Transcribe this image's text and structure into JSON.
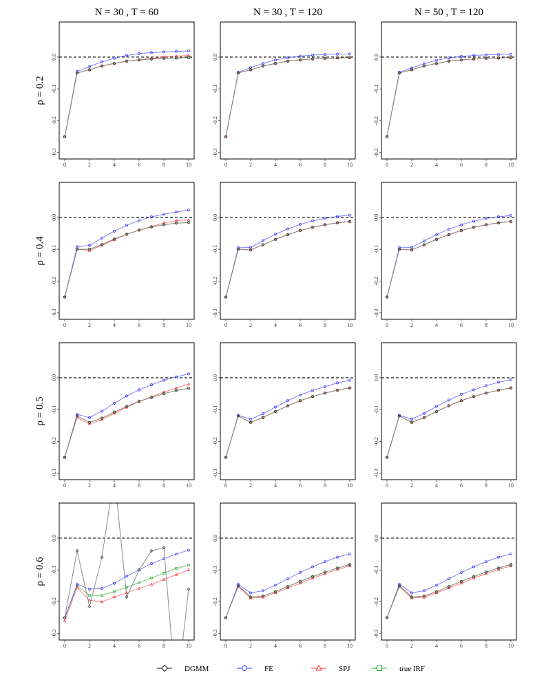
{
  "legend": {
    "items": [
      {
        "label": "DGMM",
        "color": "#222222",
        "marker": "diamond"
      },
      {
        "label": "FE",
        "color": "#3333ff",
        "marker": "circle"
      },
      {
        "label": "SPJ",
        "color": "#ff3333",
        "marker": "triangle"
      },
      {
        "label": "true IRF",
        "color": "#22aa22",
        "marker": "square"
      }
    ]
  },
  "chart_data": {
    "type": "line",
    "col_titles": [
      "N = 30 , T = 60",
      "N = 30 , T = 120",
      "N = 50 , T = 120"
    ],
    "row_titles": [
      "ρ = 0.2",
      "ρ = 0.4",
      "ρ = 0.5",
      "ρ = 0.6"
    ],
    "x": [
      0,
      1,
      2,
      3,
      4,
      5,
      6,
      7,
      8,
      9,
      10
    ],
    "x_ticks": [
      0,
      2,
      4,
      6,
      8,
      10
    ],
    "x_tick_labels": [
      "0",
      "2",
      "4",
      "6",
      "8",
      "10"
    ],
    "ylim": [
      -0.32,
      0.11
    ],
    "y_ticks": [
      0.0,
      -0.1,
      -0.2,
      -0.3
    ],
    "y_tick_labels": [
      "0.0",
      "-0.1",
      "-0.2",
      "-0.3"
    ],
    "reference_line": 0,
    "series_colors": {
      "DGMM": "#222222",
      "FE": "#3333ff",
      "SPJ": "#ff3333",
      "true IRF": "#22aa22"
    },
    "panels": [
      {
        "row": 0,
        "col": 0,
        "series": {
          "true IRF": [
            -0.25,
            -0.05,
            -0.04,
            -0.028,
            -0.02,
            -0.013,
            -0.009,
            -0.006,
            -0.004,
            -0.003,
            -0.002
          ],
          "DGMM": [
            -0.25,
            -0.05,
            -0.04,
            -0.028,
            -0.02,
            -0.013,
            -0.009,
            -0.006,
            -0.004,
            -0.003,
            -0.002
          ],
          "FE": [
            -0.25,
            -0.045,
            -0.03,
            -0.015,
            -0.004,
            0.005,
            0.011,
            0.014,
            0.016,
            0.018,
            0.019
          ],
          "SPJ": [
            -0.25,
            -0.05,
            -0.04,
            -0.027,
            -0.02,
            -0.013,
            -0.008,
            -0.004,
            0.0,
            0.003,
            0.005
          ]
        }
      },
      {
        "row": 0,
        "col": 1,
        "series": {
          "true IRF": [
            -0.25,
            -0.05,
            -0.04,
            -0.028,
            -0.02,
            -0.013,
            -0.009,
            -0.006,
            -0.004,
            -0.003,
            -0.002
          ],
          "DGMM": [
            -0.25,
            -0.05,
            -0.04,
            -0.028,
            -0.02,
            -0.013,
            -0.009,
            -0.006,
            -0.004,
            -0.003,
            -0.002
          ],
          "FE": [
            -0.25,
            -0.048,
            -0.033,
            -0.02,
            -0.009,
            -0.002,
            0.003,
            0.006,
            0.008,
            0.009,
            0.01
          ],
          "SPJ": [
            -0.25,
            -0.05,
            -0.04,
            -0.028,
            -0.02,
            -0.013,
            -0.009,
            -0.006,
            -0.004,
            -0.003,
            -0.002
          ]
        }
      },
      {
        "row": 0,
        "col": 2,
        "series": {
          "true IRF": [
            -0.25,
            -0.05,
            -0.04,
            -0.028,
            -0.02,
            -0.013,
            -0.009,
            -0.006,
            -0.004,
            -0.003,
            -0.002
          ],
          "DGMM": [
            -0.25,
            -0.05,
            -0.04,
            -0.028,
            -0.02,
            -0.013,
            -0.009,
            -0.006,
            -0.004,
            -0.003,
            -0.002
          ],
          "FE": [
            -0.25,
            -0.048,
            -0.034,
            -0.021,
            -0.01,
            -0.003,
            0.002,
            0.005,
            0.007,
            0.008,
            0.009
          ],
          "SPJ": [
            -0.25,
            -0.05,
            -0.04,
            -0.028,
            -0.02,
            -0.013,
            -0.009,
            -0.006,
            -0.004,
            -0.003,
            -0.002
          ]
        }
      },
      {
        "row": 1,
        "col": 0,
        "series": {
          "true IRF": [
            -0.25,
            -0.1,
            -0.1,
            -0.085,
            -0.068,
            -0.053,
            -0.04,
            -0.03,
            -0.023,
            -0.018,
            -0.016
          ],
          "DGMM": [
            -0.25,
            -0.1,
            -0.1,
            -0.085,
            -0.068,
            -0.053,
            -0.04,
            -0.03,
            -0.023,
            -0.018,
            -0.016
          ],
          "FE": [
            -0.25,
            -0.092,
            -0.088,
            -0.065,
            -0.043,
            -0.025,
            -0.01,
            0.002,
            0.01,
            0.017,
            0.023
          ],
          "SPJ": [
            -0.25,
            -0.1,
            -0.104,
            -0.088,
            -0.07,
            -0.053,
            -0.04,
            -0.028,
            -0.018,
            -0.01,
            -0.008
          ]
        }
      },
      {
        "row": 1,
        "col": 1,
        "series": {
          "true IRF": [
            -0.25,
            -0.1,
            -0.102,
            -0.086,
            -0.069,
            -0.054,
            -0.041,
            -0.031,
            -0.023,
            -0.017,
            -0.013
          ],
          "DGMM": [
            -0.25,
            -0.1,
            -0.102,
            -0.086,
            -0.069,
            -0.054,
            -0.041,
            -0.031,
            -0.023,
            -0.017,
            -0.013
          ],
          "FE": [
            -0.25,
            -0.095,
            -0.094,
            -0.073,
            -0.053,
            -0.036,
            -0.022,
            -0.011,
            -0.003,
            0.003,
            0.007
          ],
          "SPJ": [
            -0.25,
            -0.1,
            -0.102,
            -0.086,
            -0.069,
            -0.054,
            -0.041,
            -0.031,
            -0.023,
            -0.017,
            -0.013
          ]
        }
      },
      {
        "row": 1,
        "col": 2,
        "series": {
          "true IRF": [
            -0.25,
            -0.1,
            -0.102,
            -0.086,
            -0.069,
            -0.054,
            -0.041,
            -0.031,
            -0.023,
            -0.017,
            -0.013
          ],
          "DGMM": [
            -0.25,
            -0.1,
            -0.102,
            -0.086,
            -0.069,
            -0.054,
            -0.041,
            -0.031,
            -0.023,
            -0.017,
            -0.013
          ],
          "FE": [
            -0.25,
            -0.095,
            -0.094,
            -0.074,
            -0.054,
            -0.037,
            -0.023,
            -0.012,
            -0.003,
            0.002,
            0.006
          ],
          "SPJ": [
            -0.25,
            -0.1,
            -0.102,
            -0.086,
            -0.069,
            -0.054,
            -0.041,
            -0.031,
            -0.023,
            -0.017,
            -0.013
          ]
        }
      },
      {
        "row": 2,
        "col": 0,
        "series": {
          "true IRF": [
            -0.25,
            -0.12,
            -0.14,
            -0.127,
            -0.108,
            -0.09,
            -0.074,
            -0.062,
            -0.05,
            -0.04,
            -0.033
          ],
          "DGMM": [
            -0.25,
            -0.12,
            -0.14,
            -0.127,
            -0.108,
            -0.09,
            -0.074,
            -0.062,
            -0.05,
            -0.04,
            -0.033
          ],
          "FE": [
            -0.25,
            -0.115,
            -0.125,
            -0.105,
            -0.08,
            -0.057,
            -0.038,
            -0.022,
            -0.008,
            0.003,
            0.012
          ],
          "SPJ": [
            -0.25,
            -0.125,
            -0.145,
            -0.132,
            -0.112,
            -0.093,
            -0.075,
            -0.06,
            -0.045,
            -0.032,
            -0.02
          ]
        }
      },
      {
        "row": 2,
        "col": 1,
        "series": {
          "true IRF": [
            -0.25,
            -0.12,
            -0.14,
            -0.125,
            -0.106,
            -0.088,
            -0.072,
            -0.059,
            -0.048,
            -0.039,
            -0.032
          ],
          "DGMM": [
            -0.25,
            -0.12,
            -0.14,
            -0.125,
            -0.106,
            -0.088,
            -0.072,
            -0.059,
            -0.048,
            -0.039,
            -0.032
          ],
          "FE": [
            -0.25,
            -0.118,
            -0.13,
            -0.113,
            -0.092,
            -0.072,
            -0.054,
            -0.04,
            -0.028,
            -0.016,
            -0.008
          ],
          "SPJ": [
            -0.25,
            -0.12,
            -0.14,
            -0.125,
            -0.106,
            -0.088,
            -0.072,
            -0.059,
            -0.048,
            -0.039,
            -0.032
          ]
        }
      },
      {
        "row": 2,
        "col": 2,
        "series": {
          "true IRF": [
            -0.25,
            -0.12,
            -0.14,
            -0.125,
            -0.106,
            -0.088,
            -0.072,
            -0.059,
            -0.048,
            -0.039,
            -0.032
          ],
          "DGMM": [
            -0.25,
            -0.12,
            -0.14,
            -0.125,
            -0.106,
            -0.088,
            -0.072,
            -0.059,
            -0.048,
            -0.039,
            -0.032
          ],
          "FE": [
            -0.25,
            -0.118,
            -0.13,
            -0.112,
            -0.09,
            -0.07,
            -0.052,
            -0.038,
            -0.025,
            -0.014,
            -0.006
          ],
          "SPJ": [
            -0.25,
            -0.12,
            -0.14,
            -0.125,
            -0.106,
            -0.088,
            -0.072,
            -0.059,
            -0.048,
            -0.039,
            -0.032
          ]
        }
      },
      {
        "row": 3,
        "col": 0,
        "series": {
          "true IRF": [
            -0.25,
            -0.15,
            -0.18,
            -0.18,
            -0.168,
            -0.155,
            -0.14,
            -0.125,
            -0.11,
            -0.095,
            -0.085
          ],
          "DGMM": [
            -0.25,
            -0.04,
            -0.215,
            -0.06,
            0.2,
            -0.185,
            -0.1,
            -0.04,
            -0.03,
            -0.5,
            -0.16
          ],
          "FE": [
            -0.25,
            -0.145,
            -0.16,
            -0.158,
            -0.142,
            -0.12,
            -0.1,
            -0.08,
            -0.065,
            -0.05,
            -0.038
          ],
          "SPJ": [
            -0.26,
            -0.155,
            -0.195,
            -0.2,
            -0.185,
            -0.172,
            -0.158,
            -0.145,
            -0.13,
            -0.115,
            -0.1
          ]
        }
      },
      {
        "row": 3,
        "col": 1,
        "series": {
          "true IRF": [
            -0.25,
            -0.15,
            -0.185,
            -0.182,
            -0.168,
            -0.152,
            -0.136,
            -0.121,
            -0.107,
            -0.094,
            -0.083
          ],
          "DGMM": [
            -0.25,
            -0.15,
            -0.185,
            -0.182,
            -0.168,
            -0.152,
            -0.136,
            -0.121,
            -0.107,
            -0.094,
            -0.083
          ],
          "FE": [
            -0.25,
            -0.145,
            -0.172,
            -0.165,
            -0.148,
            -0.128,
            -0.108,
            -0.09,
            -0.074,
            -0.06,
            -0.05
          ],
          "SPJ": [
            -0.25,
            -0.152,
            -0.188,
            -0.186,
            -0.172,
            -0.157,
            -0.142,
            -0.126,
            -0.112,
            -0.099,
            -0.087
          ]
        }
      },
      {
        "row": 3,
        "col": 2,
        "series": {
          "true IRF": [
            -0.25,
            -0.15,
            -0.185,
            -0.182,
            -0.168,
            -0.152,
            -0.136,
            -0.121,
            -0.107,
            -0.094,
            -0.083
          ],
          "DGMM": [
            -0.25,
            -0.15,
            -0.185,
            -0.182,
            -0.168,
            -0.152,
            -0.136,
            -0.121,
            -0.107,
            -0.094,
            -0.083
          ],
          "FE": [
            -0.25,
            -0.145,
            -0.172,
            -0.165,
            -0.148,
            -0.128,
            -0.108,
            -0.09,
            -0.074,
            -0.06,
            -0.05
          ],
          "SPJ": [
            -0.25,
            -0.152,
            -0.188,
            -0.186,
            -0.172,
            -0.157,
            -0.142,
            -0.126,
            -0.112,
            -0.099,
            -0.087
          ]
        }
      }
    ]
  }
}
